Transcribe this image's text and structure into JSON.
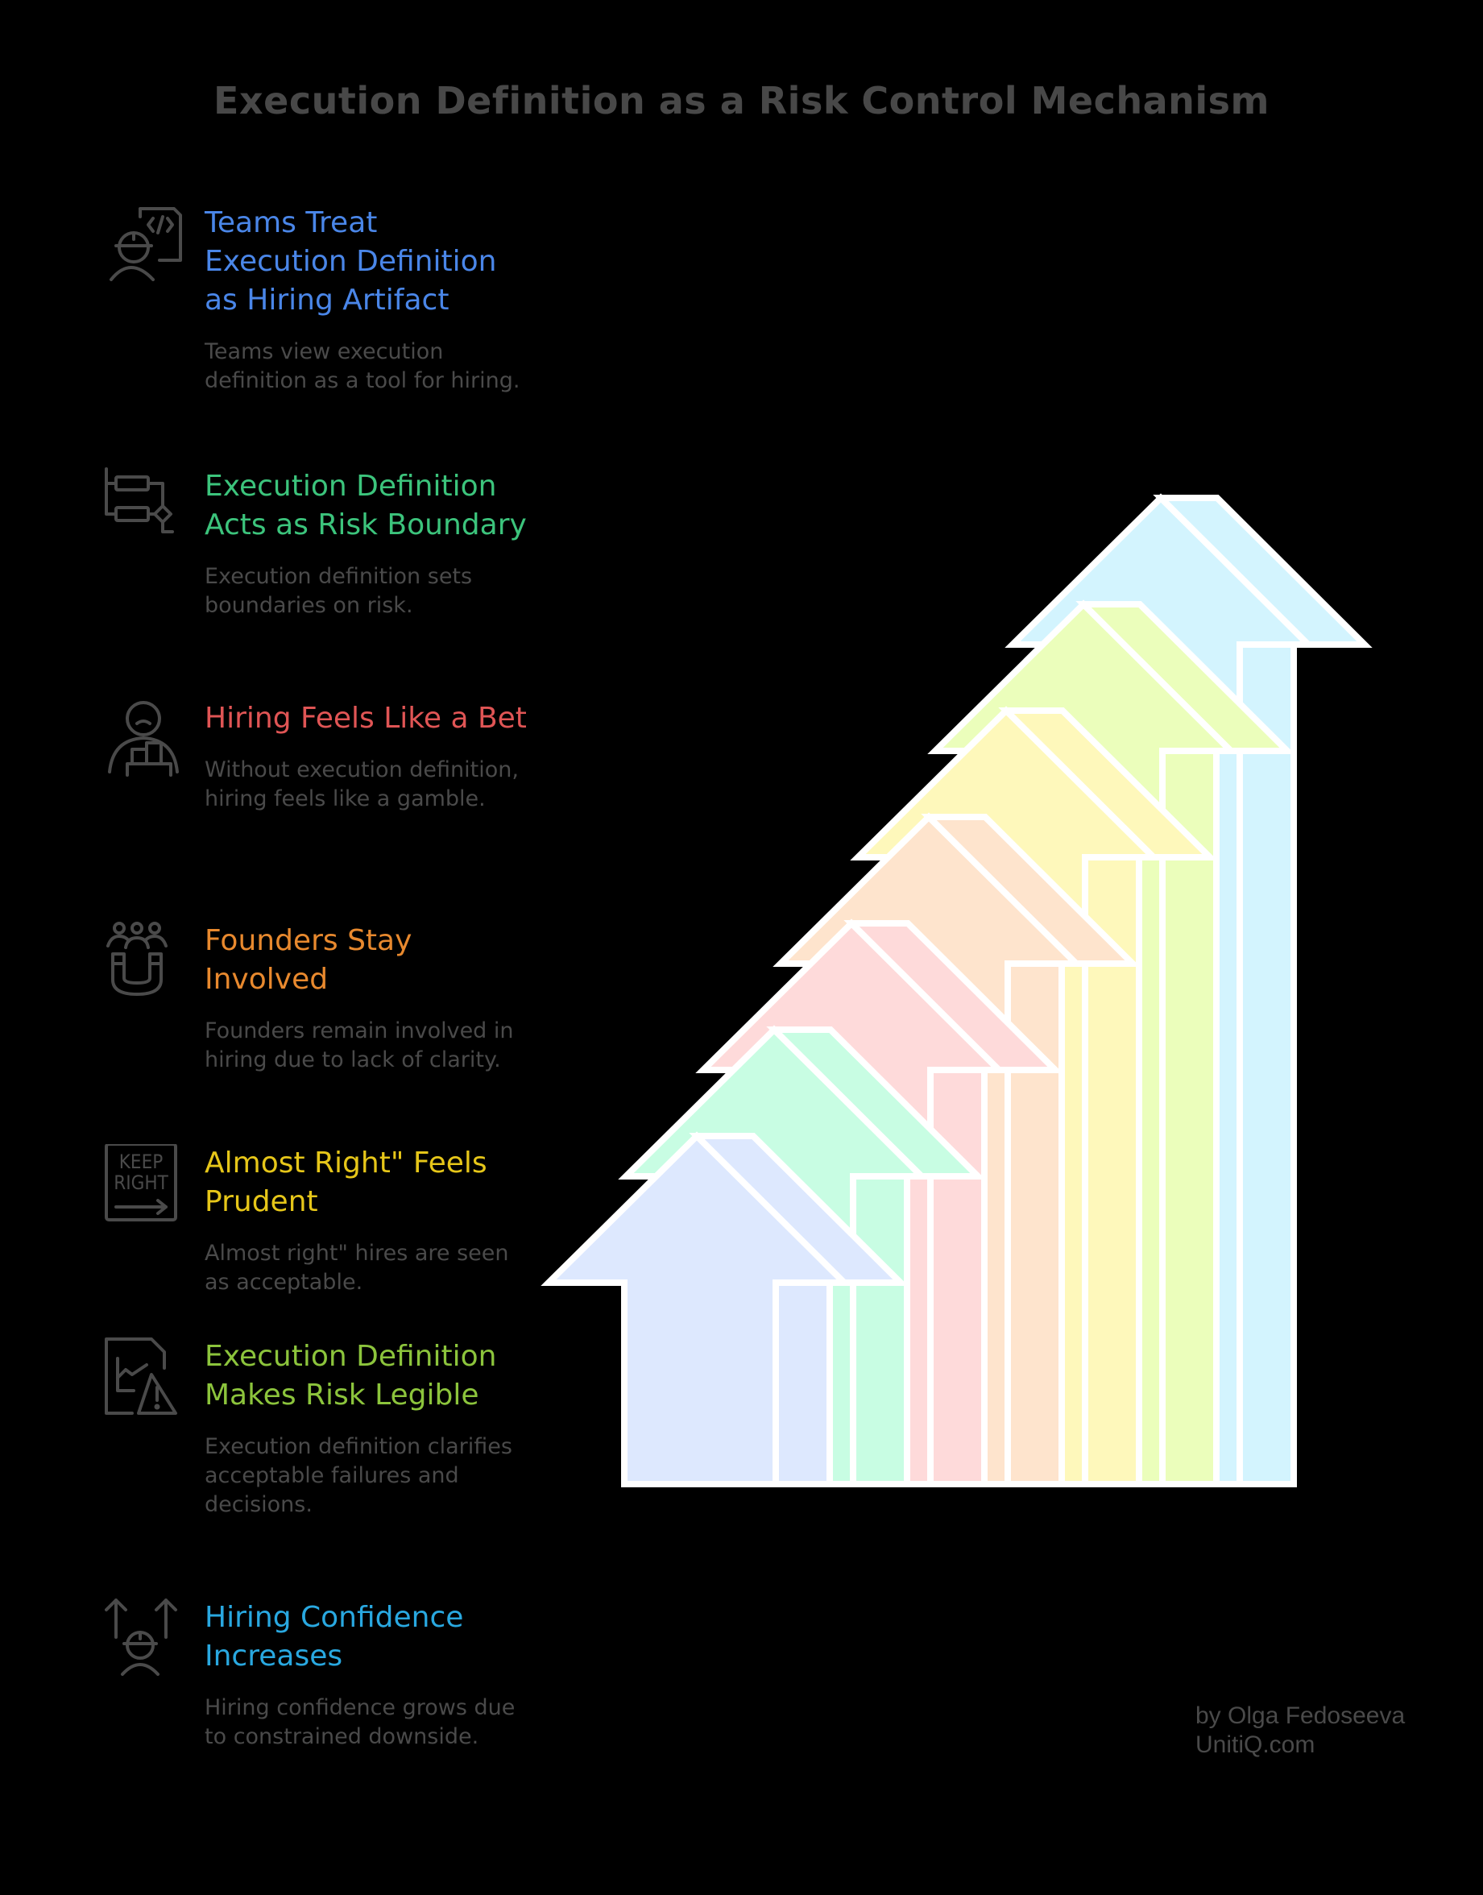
{
  "title": "Execution Definition as a Risk Control Mechanism",
  "items": [
    {
      "heading": "Teams Treat Execution Definition as Hiring Artifact",
      "description": "Teams view execution definition as a tool for hiring.",
      "color": "#4a86e8",
      "icon": "engineer-code-document-icon"
    },
    {
      "heading": "Execution Definition Acts as Risk Boundary",
      "description": "Execution definition sets boundaries on risk.",
      "color": "#3cc47c",
      "icon": "flowchart-decision-icon"
    },
    {
      "heading": "Hiring Feels Like a Bet",
      "description": "Without execution definition, hiring feels like a gamble.",
      "color": "#e05555",
      "icon": "sad-person-with-chips-icon"
    },
    {
      "heading": "Founders Stay Involved",
      "description": "Founders remain involved in hiring due to lack of clarity.",
      "color": "#e8892e",
      "icon": "people-magnet-icon"
    },
    {
      "heading": "Almost Right\" Feels Prudent",
      "description": "Almost right\" hires are seen as acceptable.",
      "color": "#e6c619",
      "icon": "keep-right-sign-icon"
    },
    {
      "heading": "Execution Definition Makes Risk Legible",
      "description": "Execution definition clarifies acceptable failures and decisions.",
      "color": "#8cc43c",
      "icon": "chart-document-warning-icon"
    },
    {
      "heading": "Hiring Confidence Increases",
      "description": "Hiring confidence grows due to constrained downside.",
      "color": "#29a8e0",
      "icon": "engineer-up-arrows-icon"
    }
  ],
  "arrows": [
    {
      "front": "#dde8fe",
      "side": "#dde8fe"
    },
    {
      "front": "#c8fde3",
      "side": "#c8fde3"
    },
    {
      "front": "#fedada",
      "side": "#fedada"
    },
    {
      "front": "#fee4cd",
      "side": "#fee4cd"
    },
    {
      "front": "#fef8bb",
      "side": "#fef8bb"
    },
    {
      "front": "#ebfebb",
      "side": "#ebfebb"
    },
    {
      "front": "#d3f4fe",
      "side": "#d3f4fe"
    }
  ],
  "credit": {
    "line1": "by Olga Fedoseeva",
    "line2": "UnitiQ.com"
  }
}
